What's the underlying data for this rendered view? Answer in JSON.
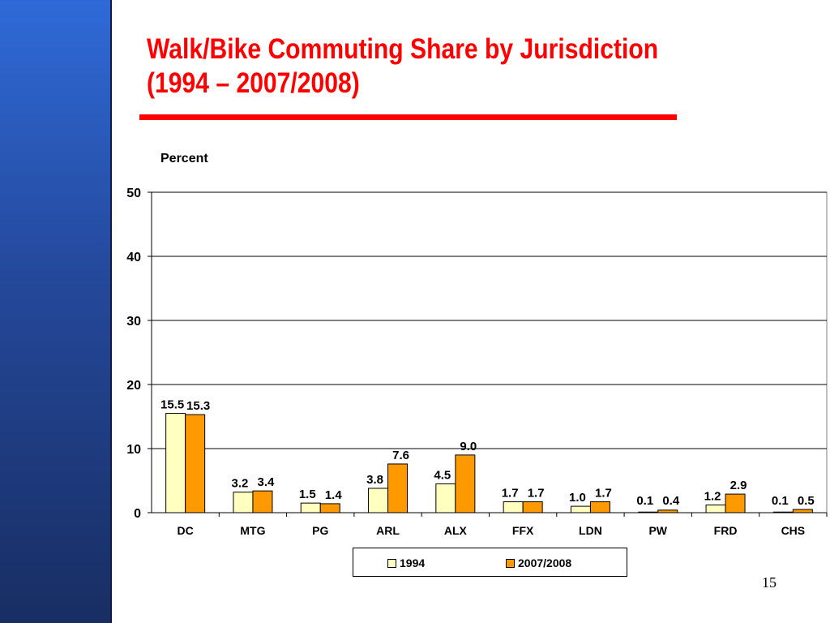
{
  "slide": {
    "title_line1": "Walk/Bike Commuting Share by Jurisdiction",
    "title_line2": "(1994 – 2007/2008)",
    "page_number": "15"
  },
  "colors": {
    "title": "#ff0000",
    "series_1994": "#ffffc0",
    "series_2007": "#ff9900"
  },
  "chart_data": {
    "type": "bar",
    "title": "",
    "ylabel": "Percent",
    "xlabel": "",
    "ylim": [
      0,
      50
    ],
    "yticks": [
      0,
      10,
      20,
      30,
      40,
      50
    ],
    "grid": true,
    "legend_position": "bottom",
    "categories": [
      "DC",
      "MTG",
      "PG",
      "ARL",
      "ALX",
      "FFX",
      "LDN",
      "PW",
      "FRD",
      "CHS"
    ],
    "series": [
      {
        "name": "1994",
        "values": [
          15.5,
          3.2,
          1.5,
          3.8,
          4.5,
          1.7,
          1.0,
          0.1,
          1.2,
          0.1
        ],
        "labels": [
          "15.5",
          "3.2",
          "1.5",
          "3.8",
          "4.5",
          "1.7",
          "1.0",
          "0.1",
          "1.2",
          "0.1"
        ]
      },
      {
        "name": "2007/2008",
        "values": [
          15.3,
          3.4,
          1.4,
          7.6,
          9.0,
          1.7,
          1.7,
          0.4,
          2.9,
          0.5
        ],
        "labels": [
          "15.3",
          "3.4",
          "1.4",
          "7.6",
          "9.0",
          "1.7",
          "1.7",
          "0.4",
          "2.9",
          "0.5"
        ]
      }
    ]
  }
}
